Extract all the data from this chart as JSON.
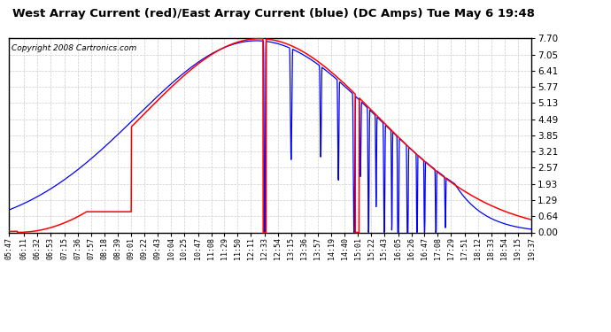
{
  "title": "West Array Current (red)/East Array Current (blue) (DC Amps) Tue May 6 19:48",
  "copyright": "Copyright 2008 Cartronics.com",
  "yticks": [
    0.0,
    0.64,
    1.29,
    1.93,
    2.57,
    3.21,
    3.85,
    4.49,
    5.13,
    5.77,
    6.41,
    7.05,
    7.7
  ],
  "ymax": 7.7,
  "ymin": 0.0,
  "red_color": "#FF0000",
  "blue_color": "#0000FF",
  "bg_color": "#FFFFFF",
  "grid_color": "#CCCCCC",
  "title_fontsize": 9.5,
  "copyright_fontsize": 6.5,
  "xtick_labels": [
    "05:47",
    "06:11",
    "06:32",
    "06:53",
    "07:15",
    "07:36",
    "07:57",
    "08:18",
    "08:39",
    "09:01",
    "09:22",
    "09:43",
    "10:04",
    "10:25",
    "10:47",
    "11:08",
    "11:29",
    "11:50",
    "12:11",
    "12:33",
    "12:54",
    "13:15",
    "13:36",
    "13:57",
    "14:19",
    "14:40",
    "15:01",
    "15:22",
    "15:43",
    "16:05",
    "16:26",
    "16:47",
    "17:08",
    "17:29",
    "17:51",
    "18:12",
    "18:33",
    "18:54",
    "19:15",
    "19:37"
  ]
}
